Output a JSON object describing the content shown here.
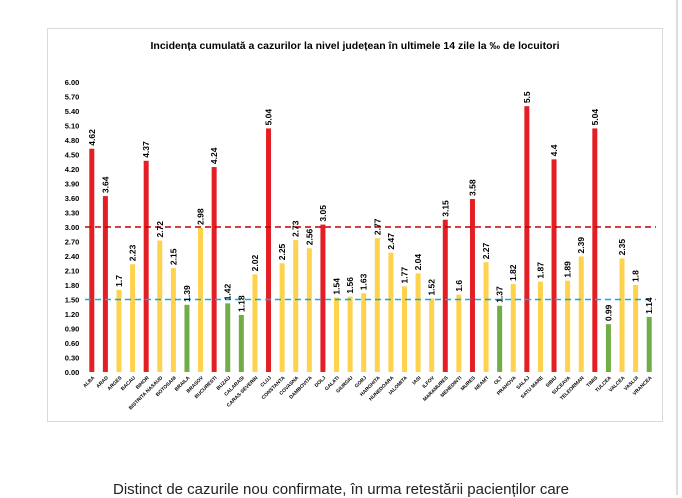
{
  "chart_data": {
    "type": "bar",
    "title": "Incidența cumulată a cazurilor la nivel județean în ultimele 14 zile la ‰ de locuitori",
    "xlabel": "",
    "ylabel": "",
    "ylim": [
      0,
      6
    ],
    "yticks": [
      "0.00",
      "0.30",
      "0.60",
      "0.90",
      "1.20",
      "1.50",
      "1.80",
      "2.10",
      "2.40",
      "2.70",
      "3.00",
      "3.30",
      "3.60",
      "3.90",
      "4.20",
      "4.50",
      "4.80",
      "5.10",
      "5.40",
      "5.70",
      "6.00"
    ],
    "categories": [
      "ALBA",
      "ARAD",
      "ARGES",
      "BACAU",
      "BIHOR",
      "BISTRITA NASAUD",
      "BOTOSANI",
      "BRAILA",
      "BRASOV",
      "BUCURESTI",
      "BUZAU",
      "CALARASI",
      "CARAS-SEVERIN",
      "CLUJ",
      "CONSTANTA",
      "COVASNA",
      "DAMBOVITA",
      "DOLJ",
      "GALATI",
      "GIURGIU",
      "GORJ",
      "HARGHITA",
      "HUNEDOARA",
      "IALOMITA",
      "IASI",
      "ILFOV",
      "MARAMURES",
      "MEHEDINTI",
      "MURES",
      "NEAMT",
      "OLT",
      "PRAHOVA",
      "SALAJ",
      "SATU MARE",
      "SIBIU",
      "SUCEAVA",
      "TELEORMAN",
      "TIMIS",
      "TULCEA",
      "VALCEA",
      "VASLUI",
      "VRANCEA"
    ],
    "values": [
      4.62,
      3.64,
      1.7,
      2.23,
      4.37,
      2.72,
      2.15,
      1.39,
      2.98,
      4.24,
      1.42,
      1.18,
      2.02,
      5.04,
      2.25,
      2.73,
      2.56,
      3.05,
      1.54,
      1.56,
      1.63,
      2.77,
      2.47,
      1.77,
      2.04,
      1.52,
      3.15,
      1.6,
      3.58,
      2.27,
      1.37,
      1.82,
      5.5,
      1.87,
      4.4,
      1.89,
      2.39,
      5.04,
      0.99,
      2.35,
      1.8,
      1.14
    ],
    "value_labels": [
      "4.62",
      "3.64",
      "1.7",
      "2.23",
      "4.37",
      "2.72",
      "2.15",
      "1.39",
      "2.98",
      "4.24",
      "1.42",
      "1.18",
      "2.02",
      "5.04",
      "2.25",
      "2.73",
      "2.56",
      "3.05",
      "1.54",
      "1.56",
      "1.63",
      "2.77",
      "2.47",
      "1.77",
      "2.04",
      "1.52",
      "3.15",
      "1.6",
      "3.58",
      "2.27",
      "1.37",
      "1.82",
      "5.5",
      "1.87",
      "4.4",
      "1.89",
      "2.39",
      "5.04",
      "0.99",
      "2.35",
      "1.8",
      "1.14"
    ],
    "thresholds": [
      {
        "name": "red-threshold",
        "value": 3.0,
        "color": "#c00000"
      },
      {
        "name": "yellow-threshold",
        "value": 1.5,
        "color": "#00b0f0"
      }
    ],
    "colors": {
      "red": "#e31e24",
      "yellow": "#ffd24d",
      "green": "#70ad47",
      "axis_text": "#000000"
    }
  },
  "caption": "Distinct de cazurile nou confirmate, în urma retestării pacienților care"
}
